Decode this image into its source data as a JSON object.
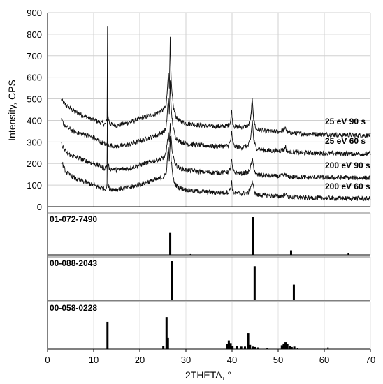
{
  "chart_data": {
    "type": "line",
    "xlabel": "2THETA, °",
    "ylabel": "Intensity, CPS",
    "xlim": [
      0,
      70
    ],
    "ylim": [
      0,
      900
    ],
    "x_ticks": [
      0,
      10,
      20,
      30,
      40,
      50,
      60,
      70
    ],
    "y_ticks": [
      0,
      100,
      200,
      300,
      400,
      500,
      600,
      700,
      800,
      900
    ],
    "grid": true,
    "series": [
      {
        "name": "25 eV 90 s",
        "x": [
          3,
          4,
          6,
          8,
          10,
          11.5,
          12.5,
          12.9,
          13.0,
          13.1,
          13.5,
          15,
          18,
          21,
          23.5,
          25,
          25.7,
          25.9,
          26.2,
          26.4,
          26.6,
          26.8,
          27.0,
          27.3,
          27.8,
          28.5,
          30,
          33,
          36,
          38,
          39.3,
          39.7,
          39.9,
          40.1,
          40.5,
          42,
          43.5,
          44.0,
          44.4,
          44.7,
          45.2,
          47,
          50,
          51.3,
          51.6,
          51.8,
          52.2,
          55,
          60,
          65,
          70
        ],
        "y": [
          495,
          470,
          440,
          420,
          402,
          390,
          382,
          400,
          838,
          420,
          383,
          376,
          392,
          415,
          432,
          448,
          465,
          520,
          620,
          548,
          778,
          580,
          520,
          460,
          420,
          400,
          386,
          378,
          372,
          372,
          378,
          398,
          455,
          392,
          372,
          368,
          374,
          402,
          498,
          402,
          360,
          350,
          347,
          356,
          372,
          350,
          342,
          338,
          335,
          332,
          330
        ]
      },
      {
        "name": "25 eV 60 s",
        "x": [
          3,
          4,
          6,
          8,
          10,
          11.5,
          12.5,
          13.5,
          15,
          18,
          21,
          23.5,
          25,
          25.7,
          25.9,
          26.2,
          26.4,
          26.6,
          26.8,
          27.0,
          27.3,
          27.8,
          28.5,
          30,
          33,
          36,
          38,
          39.3,
          39.7,
          39.9,
          40.1,
          40.5,
          42,
          43.5,
          44.0,
          44.4,
          44.7,
          45.2,
          47,
          50,
          51.3,
          51.6,
          51.8,
          52.2,
          55,
          60,
          65,
          70
        ],
        "y": [
          400,
          370,
          345,
          335,
          320,
          300,
          290,
          285,
          280,
          290,
          312,
          330,
          345,
          360,
          415,
          505,
          430,
          585,
          450,
          410,
          360,
          322,
          305,
          292,
          285,
          280,
          280,
          285,
          305,
          350,
          298,
          280,
          275,
          282,
          310,
          400,
          310,
          272,
          262,
          258,
          265,
          282,
          262,
          255,
          250,
          248,
          246,
          245
        ]
      },
      {
        "name": "200 eV 90 s",
        "x": [
          3,
          4,
          6,
          8,
          10,
          11.5,
          12.5,
          12.9,
          13.0,
          13.1,
          13.5,
          15,
          18,
          21,
          23.5,
          25,
          25.7,
          25.9,
          26.2,
          26.4,
          26.6,
          26.8,
          27.0,
          27.3,
          27.8,
          28.5,
          30,
          33,
          36,
          38,
          39.3,
          39.7,
          39.9,
          40.1,
          40.5,
          42,
          43.5,
          44.0,
          44.4,
          44.7,
          45.2,
          47,
          50,
          51.3,
          51.6,
          51.8,
          52.2,
          55,
          60,
          65,
          70
        ],
        "y": [
          290,
          250,
          230,
          215,
          200,
          185,
          178,
          190,
          560,
          195,
          175,
          170,
          180,
          200,
          215,
          225,
          240,
          290,
          340,
          300,
          378,
          310,
          270,
          225,
          195,
          180,
          170,
          162,
          158,
          158,
          162,
          182,
          222,
          172,
          158,
          154,
          158,
          182,
          218,
          180,
          148,
          145,
          140,
          145,
          152,
          142,
          138,
          136,
          135,
          134,
          133
        ]
      },
      {
        "name": "200 eV 60 s",
        "x": [
          3,
          4,
          6,
          8,
          10,
          11.5,
          12.5,
          12.9,
          13.0,
          13.1,
          13.5,
          15,
          18,
          21,
          23.5,
          25,
          25.7,
          25.9,
          26.2,
          26.4,
          26.6,
          26.8,
          27.0,
          27.3,
          27.8,
          28.5,
          30,
          33,
          36,
          38,
          39.3,
          39.7,
          39.9,
          40.1,
          40.5,
          42,
          43.5,
          44.0,
          44.4,
          44.7,
          45.2,
          47,
          50,
          51.3,
          51.6,
          51.8,
          52.2,
          55,
          60,
          65,
          70
        ],
        "y": [
          210,
          160,
          130,
          115,
          100,
          88,
          82,
          95,
          520,
          100,
          82,
          80,
          90,
          110,
          125,
          135,
          150,
          200,
          278,
          210,
          320,
          220,
          170,
          125,
          100,
          88,
          78,
          70,
          65,
          65,
          68,
          88,
          120,
          78,
          64,
          60,
          64,
          88,
          115,
          82,
          55,
          52,
          48,
          52,
          65,
          50,
          45,
          42,
          40,
          38,
          37
        ]
      }
    ],
    "reference_patterns": [
      {
        "name": "01-072-7490",
        "ymax": 100,
        "peaks": [
          {
            "x": 26.6,
            "i": 58
          },
          {
            "x": 31.0,
            "i": 2
          },
          {
            "x": 44.6,
            "i": 100
          },
          {
            "x": 52.8,
            "i": 12
          },
          {
            "x": 65.2,
            "i": 4
          }
        ]
      },
      {
        "name": "00-088-2043",
        "ymax": 100,
        "peaks": [
          {
            "x": 27.0,
            "i": 100
          },
          {
            "x": 44.9,
            "i": 87
          },
          {
            "x": 53.4,
            "i": 40
          }
        ]
      },
      {
        "name": "00-058-0228",
        "ymax": 100,
        "peaks": [
          {
            "x": 13.0,
            "i": 63
          },
          {
            "x": 25.1,
            "i": 8
          },
          {
            "x": 25.8,
            "i": 74
          },
          {
            "x": 26.1,
            "i": 26
          },
          {
            "x": 38.9,
            "i": 12
          },
          {
            "x": 39.3,
            "i": 20
          },
          {
            "x": 39.7,
            "i": 14
          },
          {
            "x": 40.1,
            "i": 8
          },
          {
            "x": 41.0,
            "i": 7
          },
          {
            "x": 42.0,
            "i": 6
          },
          {
            "x": 42.8,
            "i": 6
          },
          {
            "x": 43.5,
            "i": 37
          },
          {
            "x": 43.9,
            "i": 10
          },
          {
            "x": 44.6,
            "i": 6
          },
          {
            "x": 45.0,
            "i": 5
          },
          {
            "x": 45.6,
            "i": 4
          },
          {
            "x": 47.6,
            "i": 3
          },
          {
            "x": 50.8,
            "i": 9
          },
          {
            "x": 51.2,
            "i": 13
          },
          {
            "x": 51.6,
            "i": 16
          },
          {
            "x": 52.0,
            "i": 12
          },
          {
            "x": 52.5,
            "i": 8
          },
          {
            "x": 53.0,
            "i": 5
          },
          {
            "x": 53.5,
            "i": 6
          },
          {
            "x": 54.2,
            "i": 3
          },
          {
            "x": 60.8,
            "i": 4
          }
        ]
      }
    ]
  }
}
